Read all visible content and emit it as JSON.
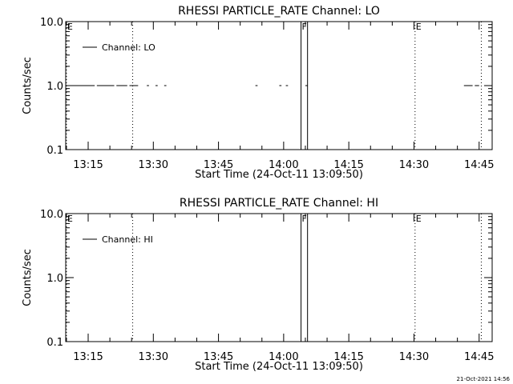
{
  "chart_data": [
    {
      "type": "line",
      "title": "RHESSI PARTICLE_RATE Channel: LO",
      "xlabel": "Start Time (24-Oct-11 13:09:50)",
      "ylabel": "Counts/sec",
      "x_ticks": [
        "13:15",
        "13:30",
        "13:45",
        "14:00",
        "14:15",
        "14:30",
        "14:45"
      ],
      "y_ticks": [
        "0.1",
        "1.0",
        "10.0"
      ],
      "y_scale": "log",
      "ylim": [
        0.1,
        10.0
      ],
      "xlim": [
        "13:09:50",
        "14:48:00"
      ],
      "grid": false,
      "legend_position": "top-left",
      "series": [
        {
          "name": "Channel: LO",
          "segments": [
            {
              "x": [
                "13:10:00",
                "13:16:30"
              ],
              "y": [
                1.0,
                1.0
              ]
            },
            {
              "x": [
                "13:17:00",
                "13:21:00"
              ],
              "y": [
                1.0,
                1.0
              ]
            },
            {
              "x": [
                "13:21:30",
                "13:24:00"
              ],
              "y": [
                1.0,
                1.0
              ]
            },
            {
              "x": [
                "13:24:30",
                "13:26:30"
              ],
              "y": [
                1.0,
                1.0
              ]
            },
            {
              "x": [
                "13:28:30",
                "13:29:00"
              ],
              "y": [
                1.0,
                1.0
              ]
            },
            {
              "x": [
                "13:30:30",
                "13:31:00"
              ],
              "y": [
                1.0,
                1.0
              ]
            },
            {
              "x": [
                "13:32:30",
                "13:33:00"
              ],
              "y": [
                1.0,
                1.0
              ]
            },
            {
              "x": [
                "13:53:30",
                "13:54:00"
              ],
              "y": [
                1.0,
                1.0
              ]
            },
            {
              "x": [
                "13:59:00",
                "13:59:30"
              ],
              "y": [
                1.0,
                1.0
              ]
            },
            {
              "x": [
                "14:00:30",
                "14:01:00"
              ],
              "y": [
                1.0,
                1.0
              ]
            },
            {
              "x": [
                "14:05:00",
                "14:05:30"
              ],
              "y": [
                1.0,
                1.0
              ]
            },
            {
              "x": [
                "14:41:30",
                "14:43:30"
              ],
              "y": [
                1.0,
                1.0
              ]
            },
            {
              "x": [
                "14:44:00",
                "14:45:00"
              ],
              "y": [
                1.0,
                1.0
              ]
            }
          ]
        }
      ],
      "markers": [
        {
          "time": "13:10:00",
          "style": "dotted",
          "label": "E"
        },
        {
          "time": "13:25:15",
          "style": "dotted",
          "label": ""
        },
        {
          "time": "14:04:00",
          "style": "solid",
          "label": "F"
        },
        {
          "time": "14:05:30",
          "style": "solid",
          "label": ""
        },
        {
          "time": "14:30:15",
          "style": "dotted",
          "label": "E"
        },
        {
          "time": "14:45:30",
          "style": "dotted",
          "label": ""
        }
      ]
    },
    {
      "type": "line",
      "title": "RHESSI PARTICLE_RATE Channel: HI",
      "xlabel": "Start Time (24-Oct-11 13:09:50)",
      "ylabel": "Counts/sec",
      "x_ticks": [
        "13:15",
        "13:30",
        "13:45",
        "14:00",
        "14:15",
        "14:30",
        "14:45"
      ],
      "y_ticks": [
        "0.1",
        "1.0",
        "10.0"
      ],
      "y_scale": "log",
      "ylim": [
        0.1,
        10.0
      ],
      "xlim": [
        "13:09:50",
        "14:48:00"
      ],
      "grid": false,
      "legend_position": "top-left",
      "series": [
        {
          "name": "Channel: HI",
          "segments": []
        }
      ],
      "markers": [
        {
          "time": "13:10:00",
          "style": "dotted",
          "label": "E"
        },
        {
          "time": "13:25:15",
          "style": "dotted",
          "label": ""
        },
        {
          "time": "14:04:00",
          "style": "solid",
          "label": "F"
        },
        {
          "time": "14:05:30",
          "style": "solid",
          "label": ""
        },
        {
          "time": "14:30:15",
          "style": "dotted",
          "label": "E"
        },
        {
          "time": "14:45:30",
          "style": "dotted",
          "label": ""
        }
      ]
    }
  ],
  "footer": {
    "timestamp": "21-Oct-2021 14:56"
  }
}
